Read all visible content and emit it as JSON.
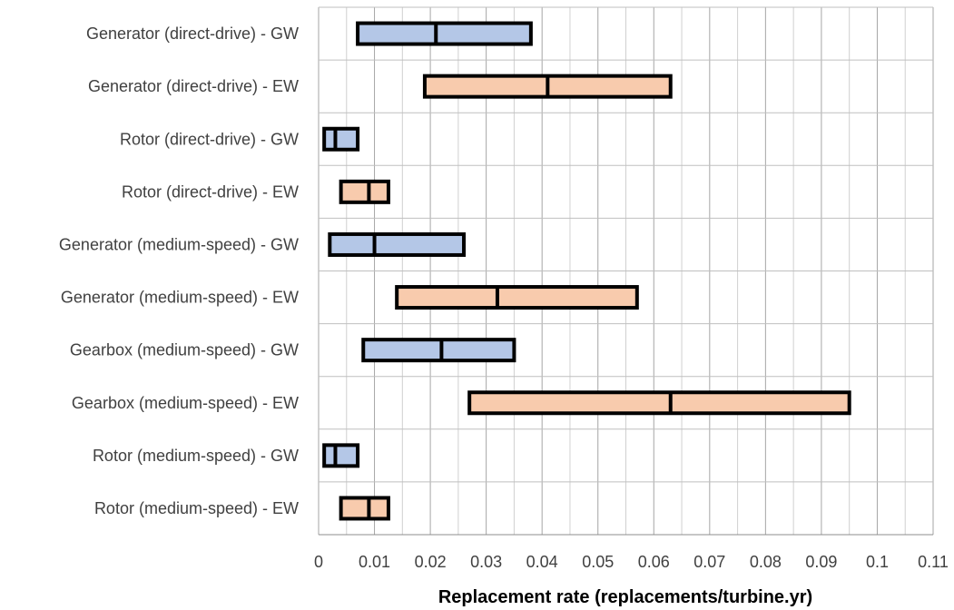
{
  "chart_data": {
    "type": "bar",
    "subtype": "horizontal-range-box",
    "xlabel": "Replacement  rate (replacements/turbine.yr)",
    "xlim": [
      0,
      0.11
    ],
    "x_ticks": [
      0,
      0.01,
      0.02,
      0.03,
      0.04,
      0.05,
      0.06,
      0.07,
      0.08,
      0.09,
      0.1,
      0.11
    ],
    "x_tick_labels": [
      "0",
      "0.01",
      "0.02",
      "0.03",
      "0.04",
      "0.05",
      "0.06",
      "0.07",
      "0.08",
      "0.09",
      "0.1",
      "0.11"
    ],
    "x_minor_step": 0.005,
    "grid": true,
    "categories": [
      "Generator (direct-drive) - GW",
      "Generator (direct-drive) - EW",
      "Rotor (direct-drive) - GW",
      "Rotor (direct-drive) - EW",
      "Generator (medium-speed) - GW",
      "Generator (medium-speed) - EW",
      "Gearbox (medium-speed) - GW",
      "Gearbox (medium-speed) - EW",
      "Rotor (medium-speed) - GW",
      "Rotor (medium-speed) - EW"
    ],
    "ranges": [
      {
        "min": 0.007,
        "mid": 0.021,
        "max": 0.038,
        "group": "GW"
      },
      {
        "min": 0.019,
        "mid": 0.041,
        "max": 0.063,
        "group": "EW"
      },
      {
        "min": 0.001,
        "mid": 0.003,
        "max": 0.007,
        "group": "GW"
      },
      {
        "min": 0.004,
        "mid": 0.009,
        "max": 0.0125,
        "group": "EW"
      },
      {
        "min": 0.002,
        "mid": 0.01,
        "max": 0.026,
        "group": "GW"
      },
      {
        "min": 0.014,
        "mid": 0.032,
        "max": 0.057,
        "group": "EW"
      },
      {
        "min": 0.008,
        "mid": 0.022,
        "max": 0.035,
        "group": "GW"
      },
      {
        "min": 0.027,
        "mid": 0.063,
        "max": 0.095,
        "group": "EW"
      },
      {
        "min": 0.001,
        "mid": 0.003,
        "max": 0.007,
        "group": "GW"
      },
      {
        "min": 0.004,
        "mid": 0.009,
        "max": 0.0125,
        "group": "EW"
      }
    ],
    "colors": {
      "GW": "#b4c7e7",
      "EW": "#f8cbad",
      "outline": "#000000",
      "grid": "#bfbfbf"
    }
  }
}
